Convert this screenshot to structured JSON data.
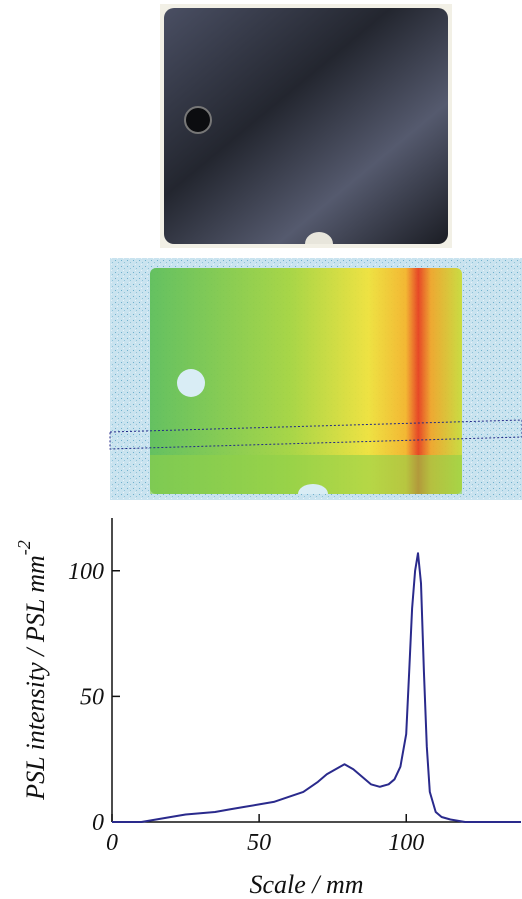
{
  "chart_data": {
    "type": "line",
    "xlabel": "Scale / mm",
    "ylabel": "PSL intensity / PSL mm",
    "ylabel_superscript": "-2",
    "x": [
      0,
      5,
      10,
      15,
      20,
      25,
      30,
      35,
      40,
      45,
      50,
      55,
      60,
      65,
      70,
      73,
      76,
      79,
      82,
      85,
      88,
      91,
      94,
      96,
      98,
      100,
      101,
      102,
      103,
      104,
      105,
      106,
      107,
      108,
      110,
      112,
      115,
      120,
      130,
      139
    ],
    "series": [
      {
        "color": "#2a2a8c",
        "values": [
          0,
          0,
          0,
          1,
          2,
          3,
          3.5,
          4,
          5,
          6,
          7,
          8,
          10,
          12,
          16,
          19,
          21,
          23,
          21,
          18,
          15,
          14,
          15,
          17,
          22,
          35,
          60,
          85,
          100,
          107,
          95,
          60,
          30,
          12,
          4,
          2,
          1,
          0,
          0,
          0
        ]
      }
    ],
    "xlim": [
      0,
      139
    ],
    "ylim": [
      0,
      121
    ],
    "xticks": [
      0,
      50,
      100
    ],
    "yticks": [
      0,
      50,
      100
    ]
  }
}
